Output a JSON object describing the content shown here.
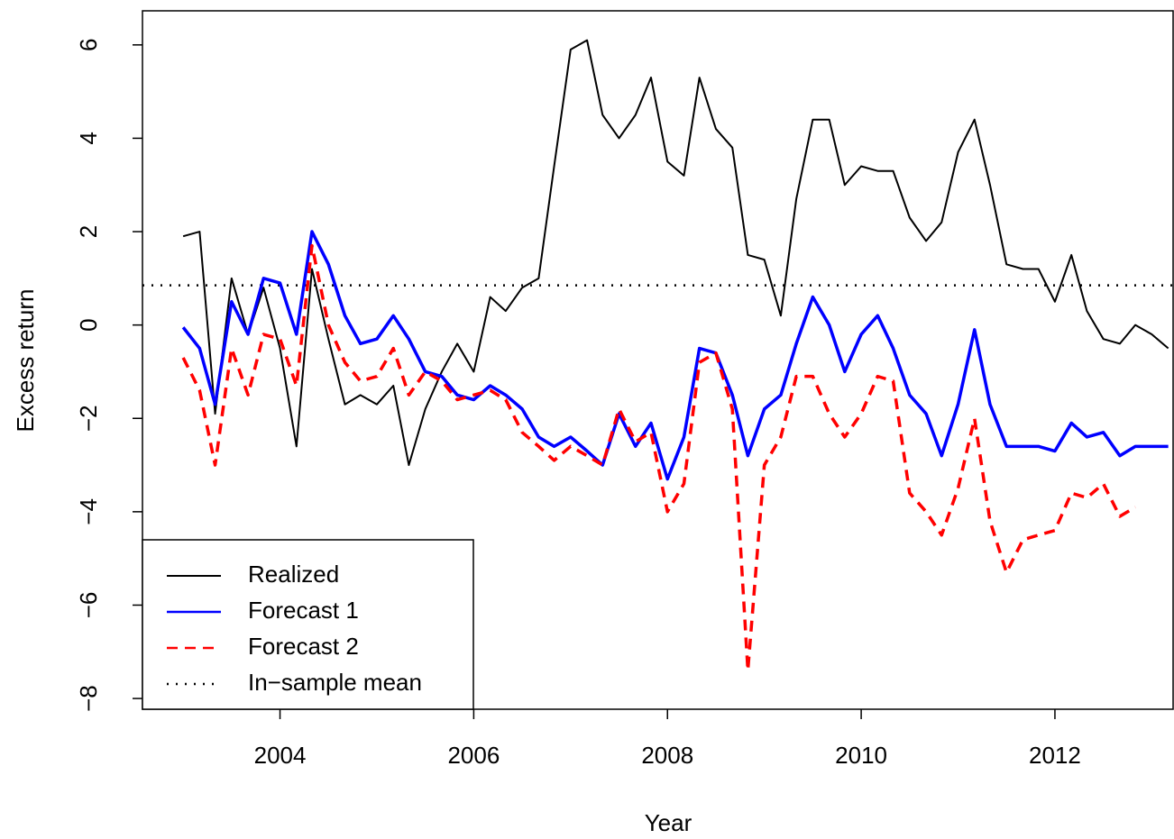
{
  "chart_data": {
    "type": "line",
    "x_label": "Year",
    "y_label": "Excess return",
    "xlim": [
      2002.58,
      2013.22
    ],
    "ylim": [
      -8.23,
      6.73
    ],
    "xticks": [
      2004,
      2006,
      2008,
      2010,
      2012
    ],
    "yticks": [
      {
        "value": -8,
        "label": "−8"
      },
      {
        "value": -6,
        "label": "−6"
      },
      {
        "value": -4,
        "label": "−4"
      },
      {
        "value": -2,
        "label": "−2"
      },
      0,
      2,
      4,
      6
    ],
    "legend": "bottom-left",
    "x": [
      2003,
      2003.17,
      2003.33,
      2003.5,
      2003.67,
      2003.83,
      2004,
      2004.17,
      2004.33,
      2004.5,
      2004.67,
      2004.83,
      2005,
      2005.17,
      2005.33,
      2005.5,
      2005.67,
      2005.83,
      2006,
      2006.17,
      2006.33,
      2006.5,
      2006.67,
      2006.83,
      2007,
      2007.17,
      2007.33,
      2007.5,
      2007.67,
      2007.83,
      2008,
      2008.17,
      2008.33,
      2008.5,
      2008.67,
      2008.83,
      2009,
      2009.17,
      2009.33,
      2009.5,
      2009.67,
      2009.83,
      2010,
      2010.17,
      2010.33,
      2010.5,
      2010.67,
      2010.83,
      2011,
      2011.17,
      2011.33,
      2011.5,
      2011.67,
      2011.83,
      2012,
      2012.17,
      2012.33,
      2012.5,
      2012.67,
      2012.83,
      2013,
      2013.17
    ],
    "series": [
      {
        "name": "Realized",
        "color": "#000000",
        "width": 2,
        "dash": "none",
        "values": [
          1.9,
          2.0,
          -1.9,
          1.0,
          -0.2,
          0.8,
          -0.5,
          -2.6,
          1.2,
          -0.3,
          -1.7,
          -1.5,
          -1.7,
          -1.3,
          -3.0,
          -1.8,
          -1.0,
          -0.4,
          -1.0,
          0.6,
          0.3,
          0.8,
          1.0,
          3.4,
          5.9,
          6.1,
          4.5,
          4.0,
          4.5,
          5.3,
          3.5,
          3.2,
          5.3,
          4.2,
          3.8,
          1.5,
          1.4,
          0.2,
          2.7,
          4.4,
          4.4,
          3.0,
          3.4,
          3.3,
          3.3,
          2.3,
          1.8,
          2.2,
          3.7,
          4.4,
          3.0,
          1.3,
          1.2,
          1.2,
          0.5,
          1.5,
          0.3,
          -0.3,
          -0.4,
          0.0,
          -0.2,
          -0.5
        ]
      },
      {
        "name": "Forecast 1",
        "color": "#0000ff",
        "width": 3.5,
        "dash": "none",
        "values": [
          -0.05,
          -0.5,
          -1.7,
          0.5,
          -0.2,
          1.0,
          0.9,
          -0.2,
          2.0,
          1.3,
          0.2,
          -0.4,
          -0.3,
          0.2,
          -0.3,
          -1.0,
          -1.1,
          -1.5,
          -1.6,
          -1.3,
          -1.5,
          -1.8,
          -2.4,
          -2.6,
          -2.4,
          -2.7,
          -3.0,
          -1.9,
          -2.6,
          -2.1,
          -3.3,
          -2.4,
          -0.5,
          -0.6,
          -1.5,
          -2.8,
          -1.8,
          -1.5,
          -0.4,
          0.6,
          0.0,
          -1.0,
          -0.2,
          0.2,
          -0.5,
          -1.5,
          -1.9,
          -2.8,
          -1.7,
          -0.1,
          -1.7,
          -2.6,
          -2.6,
          -2.6,
          -2.7,
          -2.1,
          -2.4,
          -2.3,
          -2.8,
          -2.6,
          -2.6,
          -2.6
        ]
      },
      {
        "name": "Forecast 2",
        "color": "#ff0000",
        "width": 3.5,
        "dash": "12,8",
        "values": [
          -0.7,
          -1.4,
          -3.0,
          -0.5,
          -1.5,
          -0.2,
          -0.3,
          -1.3,
          1.7,
          0.0,
          -0.8,
          -1.2,
          -1.1,
          -0.5,
          -1.5,
          -1.0,
          -1.2,
          -1.6,
          -1.5,
          -1.4,
          -1.6,
          -2.3,
          -2.6,
          -2.9,
          -2.6,
          -2.8,
          -3.0,
          -1.8,
          -2.5,
          -2.3,
          -4.0,
          -3.4,
          -0.8,
          -0.6,
          -1.8,
          -7.4,
          -3.0,
          -2.4,
          -1.1,
          -1.1,
          -1.9,
          -2.4,
          -1.9,
          -1.1,
          -1.2,
          -3.6,
          -4.0,
          -4.5,
          -3.5,
          -2.0,
          -4.2,
          -5.3,
          -4.6,
          -4.5,
          -4.4,
          -3.6,
          -3.7,
          -3.4,
          -4.1,
          -3.9,
          null,
          null
        ]
      }
    ],
    "reference_line": {
      "name": "In−sample mean",
      "value": 0.85,
      "color": "#000000",
      "width": 2.5,
      "dash": "2,8"
    }
  }
}
